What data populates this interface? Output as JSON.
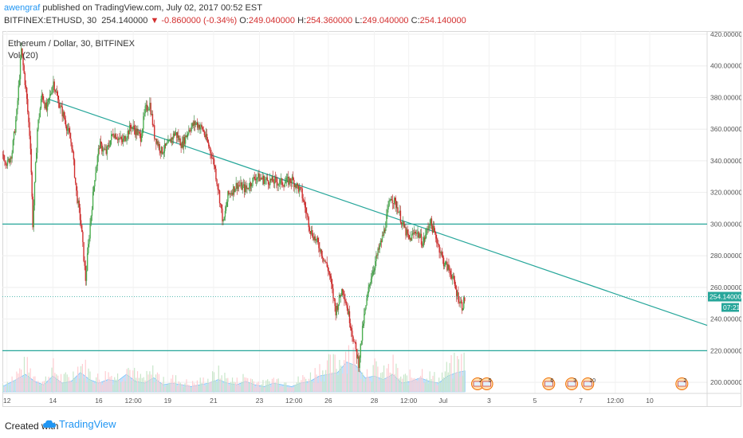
{
  "header": {
    "author": "awengraf",
    "published": "published on TradingView.com, July 02, 2017 00:52 EST",
    "symbol": "BITFINEX:ETHUSD, 30",
    "last": "254.140000",
    "change": "▼ -0.860000 (-0.34%)",
    "o_label": "O:",
    "o": "249.040000",
    "h_label": "H:",
    "h": "254.360000",
    "l_label": "L:",
    "l": "249.040000",
    "c_label": "C:",
    "c": "254.140000"
  },
  "legend": {
    "title": "Ethereum / Dollar, 30, BITFINEX",
    "vol": "Vol (20)"
  },
  "footer": {
    "created": "Created with",
    "brand": "TradingView"
  },
  "colors": {
    "up": "#4caf50",
    "down": "#d32f2f",
    "trend": "#26a69a",
    "volume": "#90caf9",
    "axis_text": "#555555"
  },
  "chart_data": {
    "type": "candlestick",
    "title": "Ethereum / Dollar, 30, BITFINEX",
    "ylim": [
      193,
      422
    ],
    "y_ticks": [
      "420.000000",
      "400.000000",
      "380.000000",
      "360.000000",
      "340.000000",
      "320.000000",
      "300.000000",
      "280.000000",
      "260.000000",
      "240.000000",
      "220.000000",
      "200.000000"
    ],
    "y_tick_values": [
      420,
      400,
      380,
      360,
      340,
      320,
      300,
      280,
      260,
      240,
      220,
      200
    ],
    "x_ticks": [
      "12",
      "14",
      "16",
      "12:00",
      "19",
      "21",
      "23",
      "12:00",
      "26",
      "28",
      "12:00",
      "Jul",
      "3",
      "5",
      "7",
      "12:00",
      "10"
    ],
    "x_tick_days": [
      12,
      14,
      16,
      17.5,
      19,
      21,
      23,
      24.5,
      26,
      28,
      29.5,
      31,
      33,
      35,
      37,
      38.5,
      40
    ],
    "x_range_days": [
      11.8,
      42.5
    ],
    "last_price_label": "254.140000",
    "countdown_label": "07:21",
    "last_price": 254.14,
    "horizontal_lines": [
      300,
      220
    ],
    "trendline": [
      [
        13.8,
        379
      ],
      [
        42.5,
        236
      ]
    ],
    "price_path": [
      [
        11.8,
        344
      ],
      [
        12.0,
        338
      ],
      [
        12.2,
        346
      ],
      [
        12.4,
        370
      ],
      [
        12.6,
        410
      ],
      [
        12.8,
        385
      ],
      [
        13.0,
        350
      ],
      [
        13.1,
        300
      ],
      [
        13.3,
        360
      ],
      [
        13.5,
        382
      ],
      [
        13.7,
        372
      ],
      [
        14.0,
        390
      ],
      [
        14.2,
        378
      ],
      [
        14.5,
        366
      ],
      [
        14.8,
        350
      ],
      [
        15.0,
        320
      ],
      [
        15.2,
        300
      ],
      [
        15.4,
        265
      ],
      [
        15.6,
        300
      ],
      [
        15.8,
        330
      ],
      [
        16.0,
        350
      ],
      [
        16.3,
        345
      ],
      [
        16.6,
        358
      ],
      [
        17.0,
        352
      ],
      [
        17.4,
        362
      ],
      [
        17.8,
        355
      ],
      [
        18.0,
        372
      ],
      [
        18.2,
        376
      ],
      [
        18.4,
        356
      ],
      [
        18.7,
        346
      ],
      [
        19.0,
        350
      ],
      [
        19.3,
        358
      ],
      [
        19.6,
        350
      ],
      [
        19.9,
        360
      ],
      [
        20.2,
        364
      ],
      [
        20.5,
        360
      ],
      [
        20.8,
        348
      ],
      [
        21.0,
        338
      ],
      [
        21.2,
        320
      ],
      [
        21.4,
        300
      ],
      [
        21.6,
        318
      ],
      [
        22.0,
        325
      ],
      [
        22.4,
        322
      ],
      [
        22.8,
        330
      ],
      [
        23.2,
        328
      ],
      [
        23.6,
        327
      ],
      [
        24.0,
        326
      ],
      [
        24.4,
        328
      ],
      [
        24.8,
        320
      ],
      [
        25.2,
        296
      ],
      [
        25.6,
        285
      ],
      [
        26.0,
        270
      ],
      [
        26.3,
        245
      ],
      [
        26.6,
        260
      ],
      [
        26.9,
        240
      ],
      [
        27.1,
        225
      ],
      [
        27.3,
        212
      ],
      [
        27.5,
        238
      ],
      [
        27.8,
        265
      ],
      [
        28.1,
        280
      ],
      [
        28.4,
        295
      ],
      [
        28.7,
        318
      ],
      [
        29.0,
        310
      ],
      [
        29.2,
        300
      ],
      [
        29.5,
        290
      ],
      [
        29.8,
        296
      ],
      [
        30.1,
        288
      ],
      [
        30.4,
        302
      ],
      [
        30.7,
        290
      ],
      [
        31.0,
        276
      ],
      [
        31.3,
        270
      ],
      [
        31.6,
        255
      ],
      [
        31.8,
        248
      ],
      [
        31.95,
        254
      ]
    ],
    "volume_profile": [
      [
        11.8,
        6
      ],
      [
        12.4,
        14
      ],
      [
        12.8,
        20
      ],
      [
        13.2,
        12
      ],
      [
        13.6,
        8
      ],
      [
        14.0,
        18
      ],
      [
        14.4,
        10
      ],
      [
        14.8,
        12
      ],
      [
        15.2,
        22
      ],
      [
        15.6,
        14
      ],
      [
        16.0,
        10
      ],
      [
        16.4,
        14
      ],
      [
        16.8,
        12
      ],
      [
        17.2,
        20
      ],
      [
        17.6,
        12
      ],
      [
        18.0,
        10
      ],
      [
        18.4,
        16
      ],
      [
        18.8,
        8
      ],
      [
        19.2,
        10
      ],
      [
        19.6,
        8
      ],
      [
        20.0,
        6
      ],
      [
        20.4,
        8
      ],
      [
        20.8,
        10
      ],
      [
        21.2,
        14
      ],
      [
        21.6,
        10
      ],
      [
        22.0,
        8
      ],
      [
        22.4,
        12
      ],
      [
        22.8,
        8
      ],
      [
        23.2,
        6
      ],
      [
        23.6,
        10
      ],
      [
        24.0,
        8
      ],
      [
        24.4,
        6
      ],
      [
        24.8,
        10
      ],
      [
        25.2,
        12
      ],
      [
        25.6,
        18
      ],
      [
        26.0,
        20
      ],
      [
        26.4,
        22
      ],
      [
        26.8,
        34
      ],
      [
        27.2,
        30
      ],
      [
        27.6,
        16
      ],
      [
        28.0,
        18
      ],
      [
        28.4,
        14
      ],
      [
        28.8,
        20
      ],
      [
        29.2,
        10
      ],
      [
        29.6,
        12
      ],
      [
        30.0,
        16
      ],
      [
        30.4,
        12
      ],
      [
        30.8,
        10
      ],
      [
        31.2,
        18
      ],
      [
        31.6,
        22
      ],
      [
        31.95,
        24
      ]
    ],
    "events": [
      {
        "day": 32.5,
        "label": "2"
      },
      {
        "day": 32.9,
        "label": "5"
      },
      {
        "day": 35.6,
        "label": "6"
      },
      {
        "day": 36.6,
        "label": "3"
      },
      {
        "day": 37.3,
        "label": "10"
      },
      {
        "day": 41.4,
        "label": "2"
      }
    ]
  }
}
